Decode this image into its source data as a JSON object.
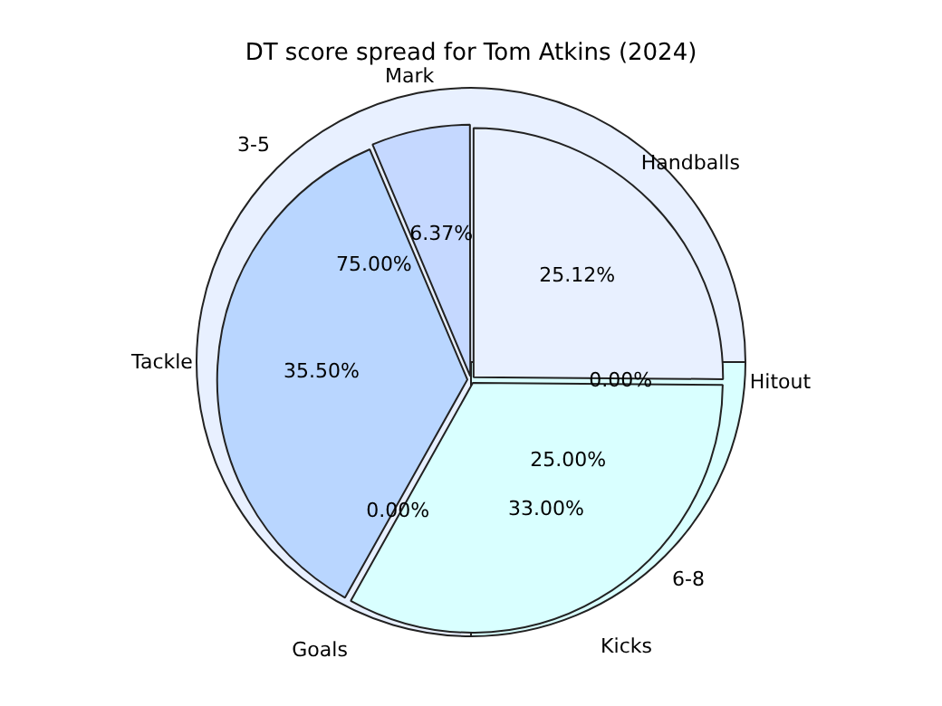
{
  "chart_data": [
    {
      "type": "pie",
      "title": "DT score spread for Tom Atkins (2024)",
      "categories": [
        "Handballs",
        "Hitout",
        "Kicks",
        "Goals",
        "Tackle",
        "Mark"
      ],
      "values": [
        25.12,
        0,
        33,
        0,
        35.5,
        6.37
      ],
      "value_labels": [
        "25.12%",
        "0.00%",
        "33.00%",
        "0.00%",
        "35.50%",
        "6.37%"
      ],
      "colors": [
        "#e8f0ff",
        "#dde8ff",
        "#d9ffff",
        "#cceeff",
        "#b9d6ff",
        "#c5d8ff"
      ],
      "legend": false
    },
    {
      "type": "pie",
      "categories": [
        "3-5",
        "6-8"
      ],
      "values": [
        75,
        25
      ],
      "value_labels": [
        "75.00%",
        "25.00%"
      ],
      "colors": [
        "#e8f0ff",
        "#d9ffff"
      ],
      "legend": false
    }
  ]
}
